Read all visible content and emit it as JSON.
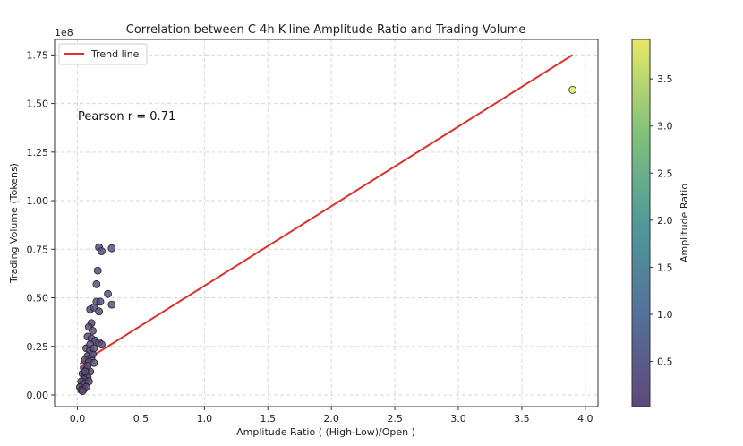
{
  "chart_data": {
    "type": "scatter",
    "title": "Correlation between C 4h K-line Amplitude Ratio and Trading Volume",
    "xlabel": "Amplitude Ratio ( (High-Low)/Open )",
    "ylabel": "Trading Volume (Tokens)",
    "y_offset_label": "1e8",
    "xlim": [
      -0.18,
      4.1
    ],
    "ylim": [
      -0.06,
      1.83
    ],
    "x_ticks": [
      "0.0",
      "0.5",
      "1.0",
      "1.5",
      "2.0",
      "2.5",
      "3.0",
      "3.5",
      "4.0"
    ],
    "y_ticks": [
      "0.00",
      "0.25",
      "0.50",
      "0.75",
      "1.00",
      "1.25",
      "1.50",
      "1.75"
    ],
    "grid": true,
    "legend": {
      "placement": "top-left",
      "entries": [
        "Trend line"
      ]
    },
    "annotation": "Pearson r = 0.71",
    "colorbar": {
      "label": "Amplitude Ratio",
      "range": [
        0.02,
        3.92
      ],
      "ticks": [
        "0.5",
        "1.0",
        "1.5",
        "2.0",
        "2.5",
        "3.0",
        "3.5"
      ]
    },
    "trend_line": {
      "x": [
        0.02,
        3.9
      ],
      "y": [
        0.16,
        1.75
      ],
      "color": "#e0302a"
    },
    "points": [
      {
        "x": 3.9,
        "y": 1.57
      },
      {
        "x": 0.17,
        "y": 0.76
      },
      {
        "x": 0.19,
        "y": 0.74
      },
      {
        "x": 0.27,
        "y": 0.755
      },
      {
        "x": 0.16,
        "y": 0.64
      },
      {
        "x": 0.15,
        "y": 0.57
      },
      {
        "x": 0.24,
        "y": 0.52
      },
      {
        "x": 0.27,
        "y": 0.465
      },
      {
        "x": 0.15,
        "y": 0.48
      },
      {
        "x": 0.18,
        "y": 0.48
      },
      {
        "x": 0.1,
        "y": 0.44
      },
      {
        "x": 0.13,
        "y": 0.45
      },
      {
        "x": 0.17,
        "y": 0.43
      },
      {
        "x": 0.11,
        "y": 0.37
      },
      {
        "x": 0.09,
        "y": 0.35
      },
      {
        "x": 0.12,
        "y": 0.33
      },
      {
        "x": 0.08,
        "y": 0.3
      },
      {
        "x": 0.11,
        "y": 0.29
      },
      {
        "x": 0.14,
        "y": 0.28
      },
      {
        "x": 0.17,
        "y": 0.27
      },
      {
        "x": 0.19,
        "y": 0.26
      },
      {
        "x": 0.07,
        "y": 0.24
      },
      {
        "x": 0.1,
        "y": 0.23
      },
      {
        "x": 0.08,
        "y": 0.2
      },
      {
        "x": 0.11,
        "y": 0.19
      },
      {
        "x": 0.06,
        "y": 0.18
      },
      {
        "x": 0.09,
        "y": 0.17
      },
      {
        "x": 0.13,
        "y": 0.165
      },
      {
        "x": 0.05,
        "y": 0.14
      },
      {
        "x": 0.07,
        "y": 0.13
      },
      {
        "x": 0.1,
        "y": 0.12
      },
      {
        "x": 0.04,
        "y": 0.11
      },
      {
        "x": 0.06,
        "y": 0.1
      },
      {
        "x": 0.08,
        "y": 0.09
      },
      {
        "x": 0.05,
        "y": 0.08
      },
      {
        "x": 0.03,
        "y": 0.07
      },
      {
        "x": 0.06,
        "y": 0.06
      },
      {
        "x": 0.09,
        "y": 0.07
      },
      {
        "x": 0.04,
        "y": 0.05
      },
      {
        "x": 0.02,
        "y": 0.04
      },
      {
        "x": 0.05,
        "y": 0.03
      },
      {
        "x": 0.03,
        "y": 0.025
      },
      {
        "x": 0.07,
        "y": 0.04
      },
      {
        "x": 0.08,
        "y": 0.15
      },
      {
        "x": 0.12,
        "y": 0.21
      },
      {
        "x": 0.06,
        "y": 0.12
      },
      {
        "x": 0.04,
        "y": 0.02
      },
      {
        "x": 0.1,
        "y": 0.26
      },
      {
        "x": 0.13,
        "y": 0.24
      }
    ]
  }
}
